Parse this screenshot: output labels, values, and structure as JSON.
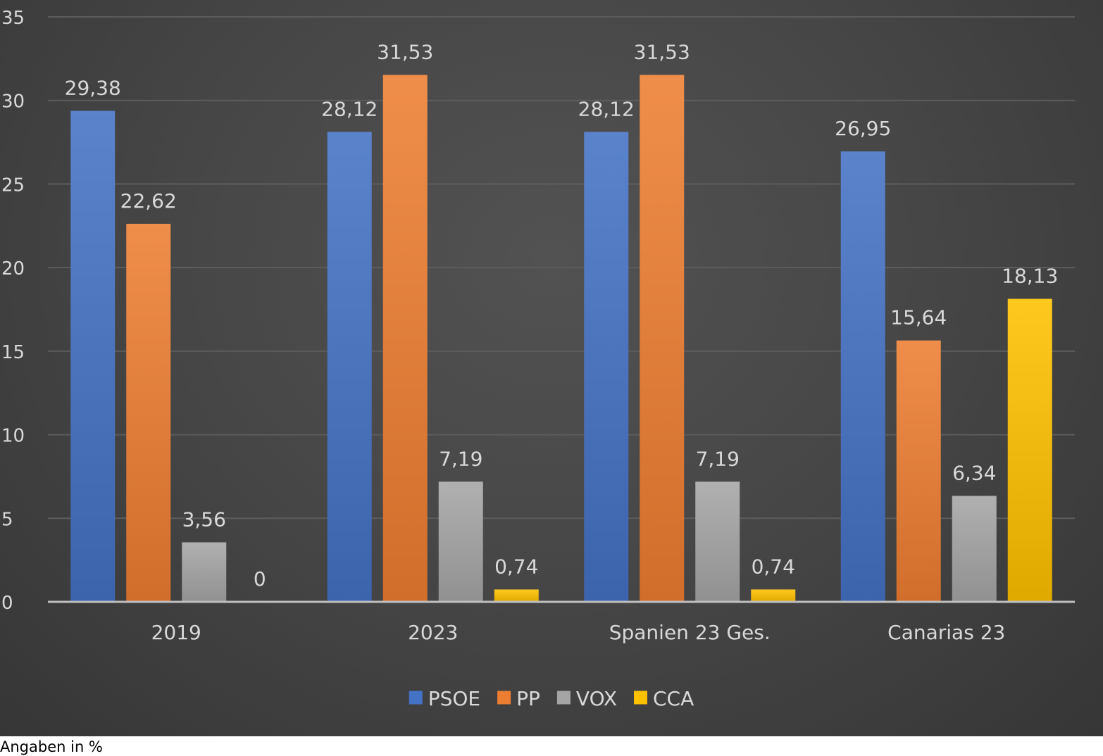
{
  "chart_data": {
    "type": "bar",
    "categories": [
      "2019",
      "2023",
      "Spanien 23 Ges.",
      "Canarias 23"
    ],
    "series": [
      {
        "name": "PSOE",
        "values": [
          29.38,
          28.12,
          28.12,
          26.95
        ],
        "labels": [
          "29,38",
          "28,12",
          "28,12",
          "26,95"
        ],
        "color": "#4472c4"
      },
      {
        "name": "PP",
        "values": [
          22.62,
          31.53,
          31.53,
          15.64
        ],
        "labels": [
          "22,62",
          "31,53",
          "31,53",
          "15,64"
        ],
        "color": "#ed7d31"
      },
      {
        "name": "VOX",
        "values": [
          3.56,
          7.19,
          7.19,
          6.34
        ],
        "labels": [
          "3,56",
          "7,19",
          "7,19",
          "6,34"
        ],
        "color": "#a5a5a5"
      },
      {
        "name": "CCA",
        "values": [
          0,
          0.74,
          0.74,
          18.13
        ],
        "labels": [
          "0",
          "0,74",
          "0,74",
          "18,13"
        ],
        "color": "#ffc000"
      }
    ],
    "ylim": [
      0,
      35
    ],
    "yticks": [
      "0",
      "5",
      "10",
      "15",
      "20",
      "25",
      "30",
      "35"
    ],
    "grid": true,
    "legend_position": "bottom",
    "title": "",
    "xlabel": "",
    "ylabel": ""
  },
  "footnote": "Angaben in %"
}
